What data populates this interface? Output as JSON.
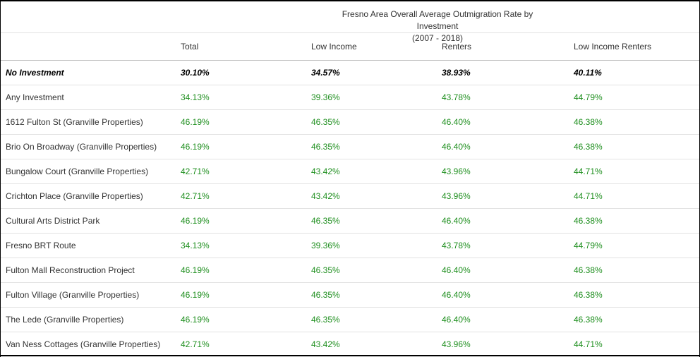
{
  "title_line1": "Fresno Area Overall Average Outmigration Rate by Investment",
  "title_line2": "(2007 - 2018)",
  "columns": [
    "",
    "Total",
    "Low Income",
    "Renters",
    "Low Income Renters"
  ],
  "rows": [
    {
      "label": "No Investment",
      "values": [
        "30.10%",
        "34.57%",
        "38.93%",
        "40.11%"
      ]
    },
    {
      "label": "Any Investment",
      "values": [
        "34.13%",
        "39.36%",
        "43.78%",
        "44.79%"
      ]
    },
    {
      "label": "1612 Fulton St (Granville Properties)",
      "values": [
        "46.19%",
        "46.35%",
        "46.40%",
        "46.38%"
      ]
    },
    {
      "label": "Brio On Broadway (Granville Properties)",
      "values": [
        "46.19%",
        "46.35%",
        "46.40%",
        "46.38%"
      ]
    },
    {
      "label": "Bungalow Court (Granville Properties)",
      "values": [
        "42.71%",
        "43.42%",
        "43.96%",
        "44.71%"
      ]
    },
    {
      "label": "Crichton Place (Granville Properties)",
      "values": [
        "42.71%",
        "43.42%",
        "43.96%",
        "44.71%"
      ]
    },
    {
      "label": "Cultural Arts District Park",
      "values": [
        "46.19%",
        "46.35%",
        "46.40%",
        "46.38%"
      ]
    },
    {
      "label": "Fresno BRT Route",
      "values": [
        "34.13%",
        "39.36%",
        "43.78%",
        "44.79%"
      ]
    },
    {
      "label": "Fulton Mall Reconstruction Project",
      "values": [
        "46.19%",
        "46.35%",
        "46.40%",
        "46.38%"
      ]
    },
    {
      "label": "Fulton Village (Granville Properties)",
      "values": [
        "46.19%",
        "46.35%",
        "46.40%",
        "46.38%"
      ]
    },
    {
      "label": "The Lede (Granville Properties)",
      "values": [
        "46.19%",
        "46.35%",
        "46.40%",
        "46.38%"
      ]
    },
    {
      "label": "Van Ness Cottages (Granville Properties)",
      "values": [
        "42.71%",
        "43.42%",
        "43.96%",
        "44.71%"
      ]
    }
  ],
  "colors": {
    "value_text": "#1f8f1f",
    "baseline_text": "#000000"
  }
}
